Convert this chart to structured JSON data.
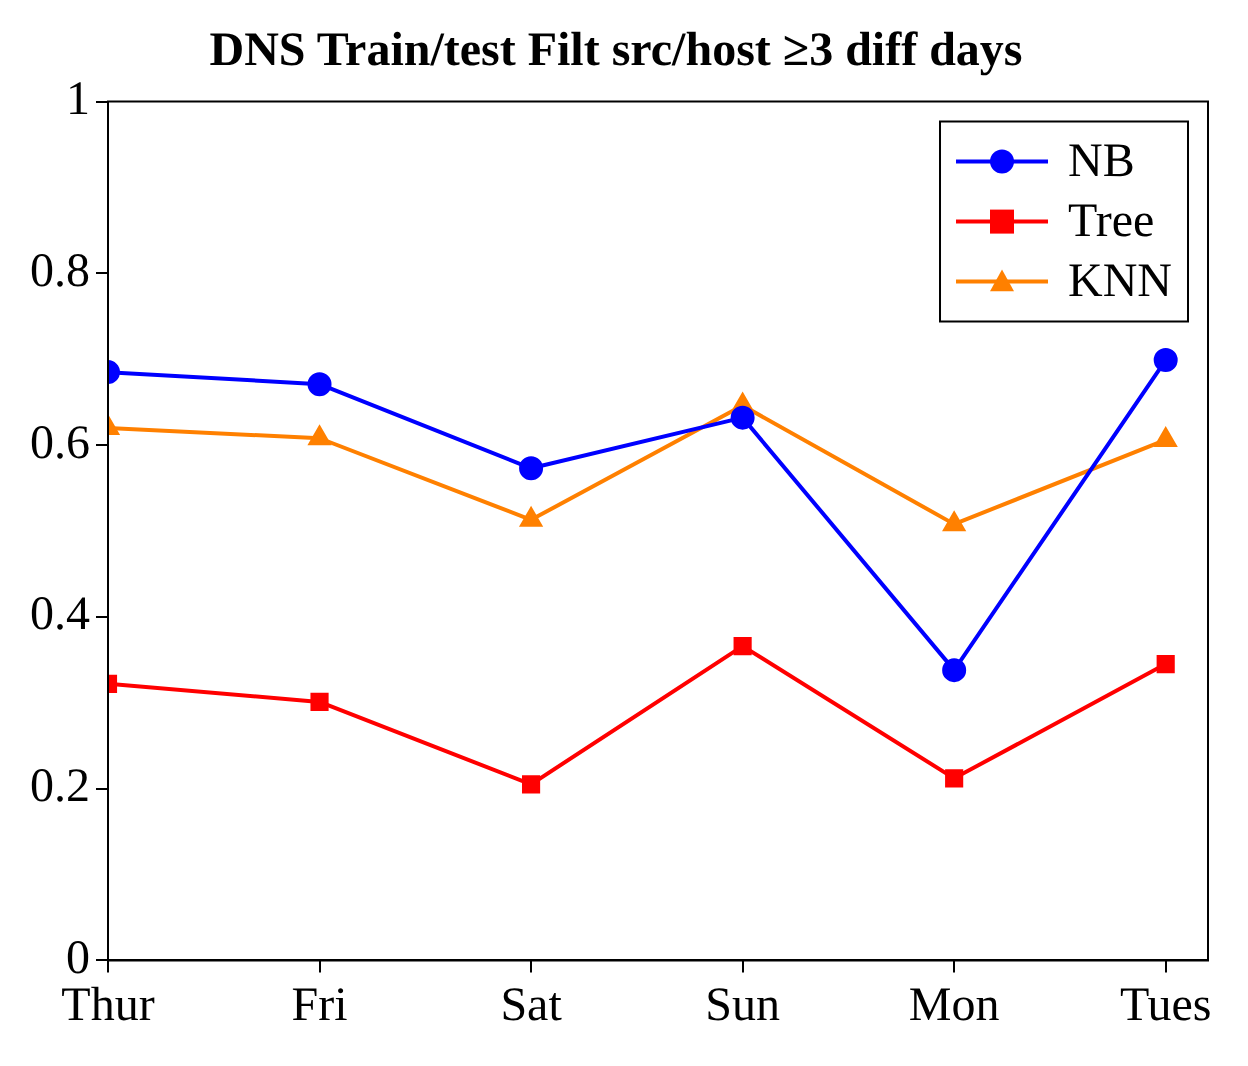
{
  "chart_data": {
    "type": "line",
    "title": "DNS Train/test Filt src/host ≥3 diff days",
    "categories": [
      "Thur",
      "Fri",
      "Sat",
      "Sun",
      "Mon",
      "Tues"
    ],
    "series": [
      {
        "name": "NB",
        "color": "#0000ff",
        "marker": "circle",
        "values": [
          0.685,
          0.671,
          0.573,
          0.632,
          0.338,
          0.699
        ]
      },
      {
        "name": "Tree",
        "color": "#ff0000",
        "marker": "square",
        "values": [
          0.322,
          0.301,
          0.205,
          0.366,
          0.212,
          0.345
        ]
      },
      {
        "name": "KNN",
        "color": "#ff8000",
        "marker": "triangle",
        "values": [
          0.62,
          0.608,
          0.513,
          0.646,
          0.508,
          0.606
        ]
      }
    ],
    "ylim": [
      0,
      1
    ],
    "yticks": [
      0,
      0.2,
      0.4,
      0.6,
      0.8,
      1
    ],
    "grid": false,
    "legend": "top right",
    "line_style": "solid"
  }
}
